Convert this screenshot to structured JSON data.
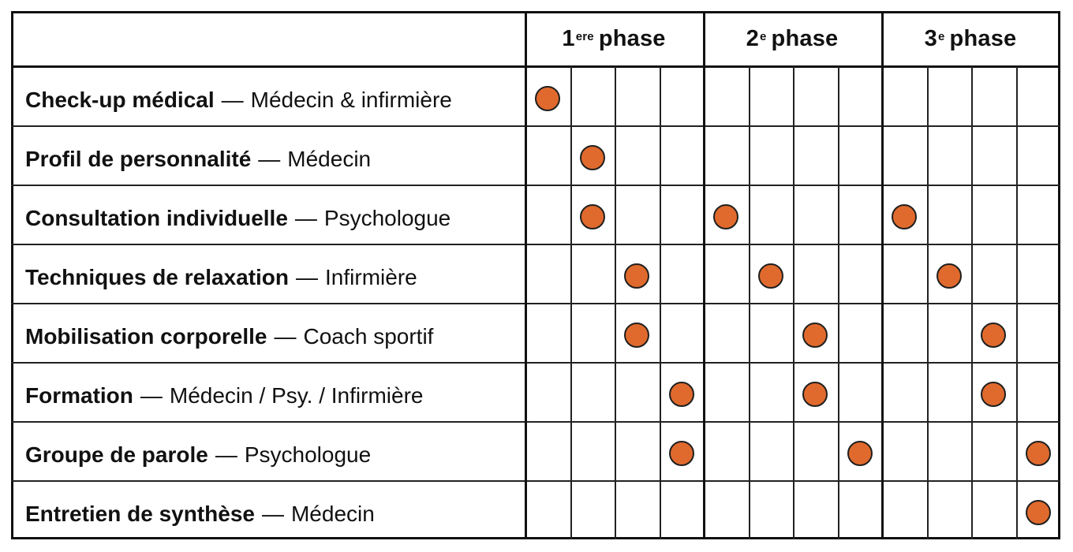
{
  "table": {
    "header": {
      "phases": [
        {
          "num": "1",
          "sup": "ere",
          "word": "phase"
        },
        {
          "num": "2",
          "sup": "e",
          "word": "phase"
        },
        {
          "num": "3",
          "sup": "e",
          "word": "phase"
        }
      ]
    },
    "rows": [
      {
        "activity": "Check-up médical",
        "separator": "—",
        "role": "Médecin & infirmière",
        "marks": [
          0
        ]
      },
      {
        "activity": "Profil de personnalité",
        "separator": "—",
        "role": "Médecin",
        "marks": [
          1
        ]
      },
      {
        "activity": "Consultation individuelle",
        "separator": "—",
        "role": "Psychologue",
        "marks": [
          1,
          4,
          8
        ]
      },
      {
        "activity": "Techniques de relaxation",
        "separator": "—",
        "role": "Infirmière",
        "marks": [
          2,
          5,
          9
        ]
      },
      {
        "activity": "Mobilisation corporelle",
        "separator": "—",
        "role": "Coach sportif",
        "marks": [
          2,
          6,
          10
        ]
      },
      {
        "activity": "Formation",
        "separator": "—",
        "role": "Médecin / Psy. / Infirmière",
        "marks": [
          3,
          6,
          10
        ]
      },
      {
        "activity": "Groupe de parole",
        "separator": "—",
        "role": "Psychologue",
        "marks": [
          3,
          7,
          11
        ]
      },
      {
        "activity": "Entretien de synthèse",
        "separator": "—",
        "role": "Médecin",
        "marks": [
          11
        ]
      }
    ],
    "columns_per_phase": 4,
    "dot_color": "#e06a2d"
  }
}
